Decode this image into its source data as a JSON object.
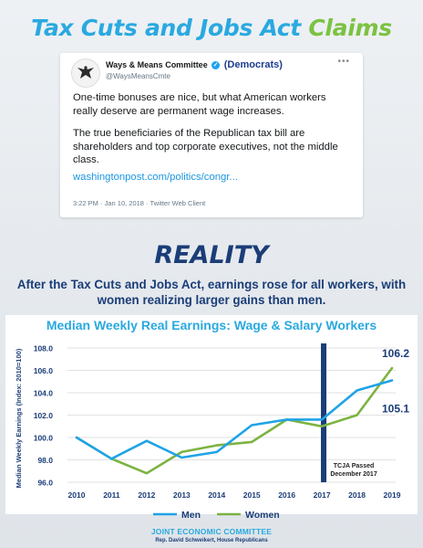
{
  "headline": {
    "part1": "Tax Cuts and Jobs Act",
    "part2": "Claims"
  },
  "tweet": {
    "name": "Ways & Means Committee",
    "party": "(Democrats)",
    "handle": "@WaysMeansCmte",
    "more": "•••",
    "paragraph1": "One-time bonuses are nice, but what American workers really deserve are permanent wage increases.",
    "paragraph2": "The true beneficiaries of the Republican tax bill are shareholders and top corporate executives, not the middle class.",
    "link": "washingtonpost.com/politics/congr...",
    "meta": "3:22 PM · Jan 10, 2018 · Twitter Web Client"
  },
  "reality": "REALITY",
  "subtitle": "After the Tax Cuts and Jobs Act, earnings rose for all workers, with women realizing larger gains than men.",
  "chart_data": {
    "type": "line",
    "title": "Median Weekly Real Earnings: Wage & Salary Workers",
    "ylabel": "Median Weekly Earnings (Index: 2010=100)",
    "x": [
      2010,
      2011,
      2012,
      2013,
      2014,
      2015,
      2016,
      2017,
      2018,
      2019
    ],
    "ylim": [
      96.0,
      108.0
    ],
    "yticks": [
      "96.0",
      "98.0",
      "100.0",
      "102.0",
      "104.0",
      "106.0",
      "108.0"
    ],
    "series": [
      {
        "name": "Men",
        "color": "#1fa3e6",
        "values": [
          100.0,
          98.1,
          99.7,
          98.2,
          98.7,
          101.1,
          101.6,
          101.6,
          104.2,
          105.1
        ]
      },
      {
        "name": "Women",
        "color": "#7cb342",
        "values": [
          100.0,
          98.1,
          96.8,
          98.7,
          99.3,
          99.6,
          101.6,
          101.0,
          102.0,
          106.2
        ]
      }
    ],
    "end_labels": {
      "men": "105.1",
      "women": "106.2"
    },
    "annotation": {
      "x": 2017.05,
      "line1": "TCJA Passed",
      "line2": "December 2017"
    },
    "legend_position": "bottom"
  },
  "footer": {
    "org": "JOINT ECONOMIC COMMITTEE",
    "sub": "Rep. David Schweikert, House Republicans"
  }
}
